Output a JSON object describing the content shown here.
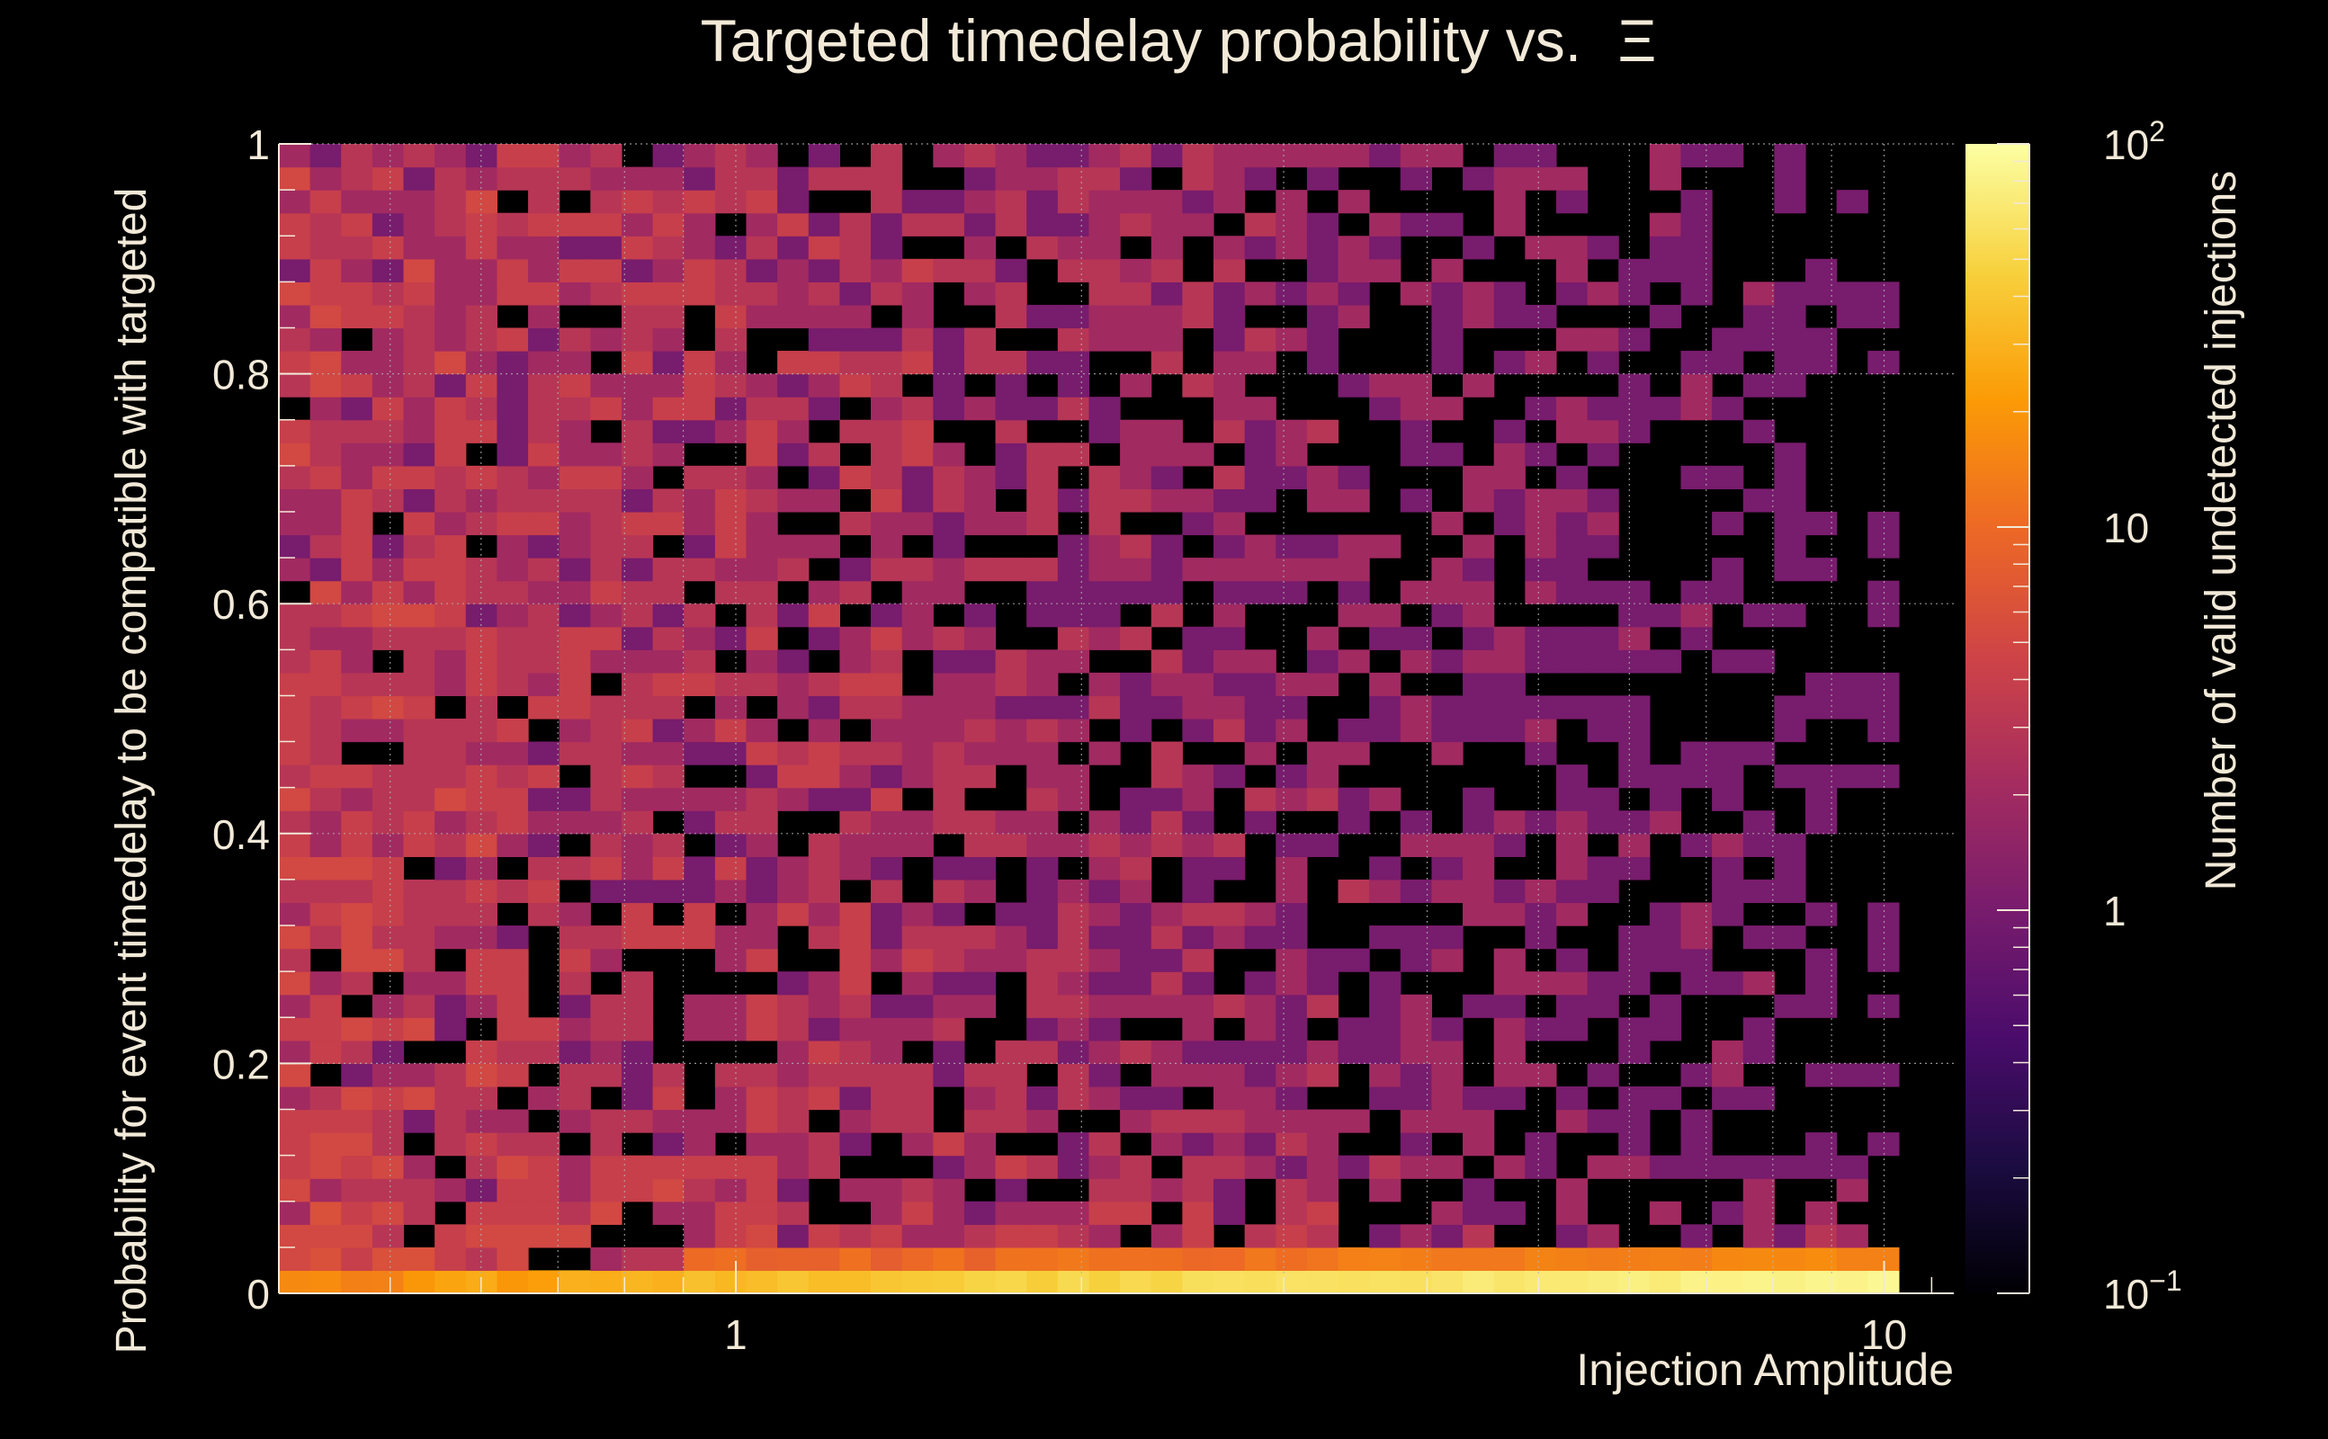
{
  "chart_data": {
    "type": "heatmap",
    "title": "Targeted timedelay probability vs.",
    "title_symbol": "Ξ",
    "xlabel": "Injection Amplitude",
    "ylabel": "Probability for event timedelay to be compatible with targeted",
    "zlabel": "Number of valid undetected injections",
    "x_scale": "log",
    "x_range": [
      0.4,
      11.5
    ],
    "x_ticks": [
      1,
      10
    ],
    "x_tick_labels": [
      "1",
      "10"
    ],
    "y_range": [
      0,
      1
    ],
    "y_ticks": [
      0,
      0.2,
      0.4,
      0.6,
      0.8,
      1
    ],
    "y_tick_labels": [
      "0",
      "0.2",
      "0.4",
      "0.6",
      "0.8",
      "1"
    ],
    "z_scale": "log",
    "z_range": [
      0.1,
      100
    ],
    "z_tick_labels": [
      {
        "base": "10",
        "exp": "−1"
      },
      {
        "base": "1",
        "exp": ""
      },
      {
        "base": "10",
        "exp": ""
      },
      {
        "base": "10",
        "exp": "2"
      }
    ],
    "grid": true,
    "colormap": [
      "#000004",
      "#1b0c41",
      "#4a0c6b",
      "#781c6d",
      "#a52c60",
      "#cf4446",
      "#ed6925",
      "#fb9b06",
      "#f7d13d",
      "#fcffa4"
    ],
    "bins": {
      "nx": 52,
      "ny": 50,
      "x_min": 0.4,
      "x_max": 10.3,
      "y_min": 0,
      "y_max": 1
    },
    "colors": {
      "background": "#000000",
      "text": "#f2e9d8",
      "grid": "#b4b4b4"
    }
  }
}
